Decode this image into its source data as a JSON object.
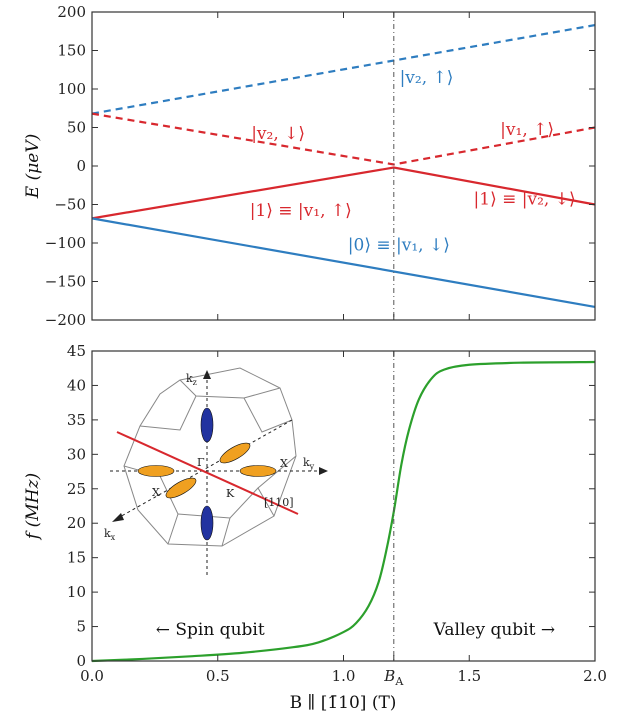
{
  "colors": {
    "blue": "#2e7dc0",
    "red": "#d8282e",
    "green": "#2ca02c",
    "axis": "#333333",
    "orange": "#f0a020",
    "navy": "#2233a0"
  },
  "chart_data": [
    {
      "type": "line",
      "ylabel": "E (μeV)",
      "xlim": [
        0,
        2.0
      ],
      "ylim": [
        -200,
        200
      ],
      "yticks": [
        "200",
        "150",
        "100",
        "50",
        "0",
        "−50",
        "−100",
        "−150",
        "−200"
      ],
      "ytick_values": [
        200,
        150,
        100,
        50,
        0,
        -50,
        -100,
        -150,
        -200
      ],
      "vline_x": 1.2,
      "series": [
        {
          "color": "#2e7dc0",
          "style": "dashed",
          "x": [
            0,
            2.0
          ],
          "y": [
            68,
            183
          ]
        },
        {
          "color": "#d8282e",
          "style": "dashed",
          "x": [
            0,
            1.2,
            2.0
          ],
          "y": [
            68,
            2,
            50
          ]
        },
        {
          "color": "#d8282e",
          "style": "solid",
          "x": [
            0,
            1.2,
            2.0
          ],
          "y": [
            -68,
            -2,
            -50
          ]
        },
        {
          "color": "#2e7dc0",
          "style": "solid",
          "x": [
            0,
            2.0
          ],
          "y": [
            -68,
            -183
          ]
        }
      ],
      "annotations": [
        {
          "text": "|v₂, ↑⟩",
          "color": "#2e7dc0",
          "x": 1.33,
          "y": 108
        },
        {
          "text": "|v₂, ↓⟩",
          "color": "#d8282e",
          "x": 0.74,
          "y": 35
        },
        {
          "text": "|v₁, ↑⟩",
          "color": "#d8282e",
          "x": 1.73,
          "y": 40
        },
        {
          "text": "|1⟩ ≡ |v₁, ↑⟩",
          "color": "#d8282e",
          "x": 0.83,
          "y": -65
        },
        {
          "text": "|1⟩ ≡ |v₂, ↓⟩",
          "color": "#d8282e",
          "x": 1.72,
          "y": -50
        },
        {
          "text": "|0⟩ ≡ |v₁, ↓⟩",
          "color": "#2e7dc0",
          "x": 1.22,
          "y": -110
        }
      ]
    },
    {
      "type": "line",
      "ylabel": "f (MHz)",
      "xlabel": "B ∥ [1̄10] (T)",
      "xlim": [
        0,
        2.0
      ],
      "ylim": [
        0,
        45
      ],
      "xticks": [
        "0.0",
        "0.5",
        "1.0",
        "B_A",
        "1.5",
        "2.0"
      ],
      "xtick_values": [
        0,
        0.5,
        1.0,
        1.2,
        1.5,
        2.0
      ],
      "xtick_main": "B",
      "xtick_sub": "A",
      "yticks": [
        "45",
        "40",
        "35",
        "30",
        "25",
        "20",
        "15",
        "10",
        "5",
        "0"
      ],
      "ytick_values": [
        45,
        40,
        35,
        30,
        25,
        20,
        15,
        10,
        5,
        0
      ],
      "vline_x": 1.2,
      "series": [
        {
          "color": "#2ca02c",
          "style": "solid",
          "x": [
            0,
            0.2,
            0.4,
            0.6,
            0.8,
            0.9,
            1.0,
            1.05,
            1.1,
            1.14,
            1.17,
            1.2,
            1.23,
            1.26,
            1.3,
            1.35,
            1.4,
            1.5,
            1.7,
            2.0
          ],
          "y": [
            0,
            0.3,
            0.7,
            1.2,
            2.0,
            2.7,
            4.2,
            5.5,
            8.0,
            11.5,
            16.0,
            21.7,
            28.5,
            33.5,
            38.0,
            41.0,
            42.3,
            43.0,
            43.3,
            43.4
          ]
        }
      ],
      "annotations": [
        {
          "text": "← Spin qubit",
          "x": 0.47,
          "y": 3.8
        },
        {
          "text": "Valley qubit →",
          "x": 1.6,
          "y": 3.8
        }
      ],
      "inset_labels": {
        "kz": "k",
        "kz_sub": "z",
        "ky": "k",
        "ky_sub": "y",
        "kx": "k",
        "kx_sub": "x",
        "gamma": "Γ",
        "x1": "X",
        "x2": "X",
        "k": "K",
        "dir": "[110]"
      }
    }
  ]
}
